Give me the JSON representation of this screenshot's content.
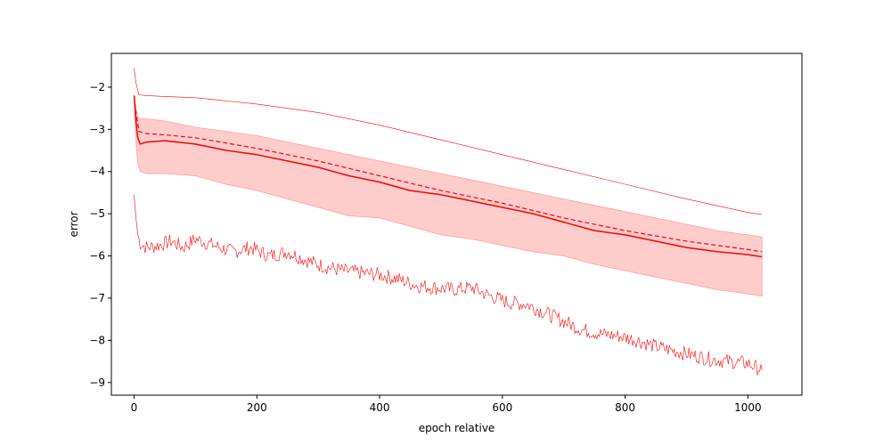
{
  "chart_data": {
    "type": "line",
    "title": "",
    "xlabel": "epoch relative",
    "ylabel": "error",
    "xlim": [
      -37,
      1088
    ],
    "ylim": [
      -9.3,
      -1.2
    ],
    "xticks": [
      0,
      200,
      400,
      600,
      800,
      1000
    ],
    "yticks": [
      -2,
      -3,
      -4,
      -5,
      -6,
      -7,
      -8,
      -9
    ],
    "xtick_labels": [
      "0",
      "200",
      "400",
      "600",
      "800",
      "1000"
    ],
    "ytick_labels": [
      "−2",
      "−3",
      "−4",
      "−5",
      "−6",
      "−7",
      "−8",
      "−9"
    ],
    "grid": false,
    "legend": "none",
    "color": "#ff0000",
    "band_color": "#ffcccc",
    "series": [
      {
        "style": "max-thin",
        "x": [
          0,
          3,
          8,
          20,
          50,
          100,
          200,
          300,
          400,
          500,
          600,
          700,
          800,
          900,
          1000,
          1023
        ],
        "y": [
          -1.55,
          -1.9,
          -2.18,
          -2.2,
          -2.22,
          -2.25,
          -2.4,
          -2.6,
          -2.9,
          -3.25,
          -3.6,
          -3.95,
          -4.3,
          -4.65,
          -4.97,
          -5.02
        ]
      },
      {
        "style": "mean-dashed",
        "x": [
          0,
          3,
          8,
          20,
          50,
          100,
          200,
          300,
          400,
          500,
          600,
          700,
          800,
          900,
          1000,
          1023
        ],
        "y": [
          -2.2,
          -2.6,
          -3.05,
          -3.1,
          -3.13,
          -3.2,
          -3.45,
          -3.75,
          -4.1,
          -4.45,
          -4.75,
          -5.1,
          -5.4,
          -5.65,
          -5.85,
          -5.9
        ]
      },
      {
        "style": "median-solid",
        "x": [
          0,
          3,
          6,
          10,
          20,
          50,
          100,
          150,
          200,
          250,
          300,
          350,
          400,
          450,
          500,
          550,
          600,
          650,
          700,
          750,
          800,
          850,
          900,
          950,
          1000,
          1023
        ],
        "y": [
          -2.2,
          -2.8,
          -3.2,
          -3.35,
          -3.3,
          -3.27,
          -3.35,
          -3.5,
          -3.6,
          -3.75,
          -3.9,
          -4.1,
          -4.25,
          -4.45,
          -4.55,
          -4.7,
          -4.85,
          -5.0,
          -5.2,
          -5.4,
          -5.5,
          -5.65,
          -5.8,
          -5.9,
          -5.97,
          -6.02
        ]
      },
      {
        "style": "min-noisy",
        "x": [
          0,
          3,
          6,
          10,
          20,
          40,
          60,
          80,
          100,
          130,
          160,
          190,
          220,
          250,
          280,
          310,
          340,
          370,
          400,
          430,
          460,
          490,
          520,
          550,
          580,
          610,
          640,
          670,
          700,
          730,
          760,
          790,
          820,
          850,
          880,
          910,
          940,
          970,
          1000,
          1023
        ],
        "y": [
          -4.55,
          -5.1,
          -5.5,
          -5.7,
          -5.8,
          -5.75,
          -5.65,
          -5.8,
          -5.6,
          -5.75,
          -5.9,
          -5.8,
          -6.0,
          -5.9,
          -6.1,
          -6.25,
          -6.35,
          -6.4,
          -6.45,
          -6.55,
          -6.7,
          -6.75,
          -6.8,
          -6.75,
          -6.95,
          -7.1,
          -7.15,
          -7.35,
          -7.55,
          -7.75,
          -7.85,
          -7.9,
          -8.0,
          -8.15,
          -8.25,
          -8.35,
          -8.45,
          -8.5,
          -8.55,
          -8.7
        ]
      }
    ],
    "band": {
      "x": [
        0,
        3,
        6,
        10,
        20,
        50,
        100,
        150,
        200,
        250,
        300,
        350,
        400,
        450,
        500,
        550,
        600,
        650,
        700,
        750,
        800,
        850,
        900,
        950,
        1000,
        1023
      ],
      "upper": [
        -2.2,
        -2.5,
        -2.7,
        -2.75,
        -2.75,
        -2.8,
        -2.95,
        -3.05,
        -3.15,
        -3.3,
        -3.45,
        -3.6,
        -3.75,
        -3.9,
        -4.05,
        -4.2,
        -4.35,
        -4.5,
        -4.65,
        -4.8,
        -4.95,
        -5.1,
        -5.25,
        -5.4,
        -5.5,
        -5.55
      ],
      "lower": [
        -2.2,
        -3.3,
        -3.8,
        -4.0,
        -4.05,
        -4.05,
        -4.1,
        -4.3,
        -4.45,
        -4.65,
        -4.85,
        -5.05,
        -5.1,
        -5.3,
        -5.5,
        -5.6,
        -5.75,
        -5.9,
        -6.0,
        -6.2,
        -6.35,
        -6.5,
        -6.65,
        -6.8,
        -6.9,
        -6.95
      ]
    }
  }
}
